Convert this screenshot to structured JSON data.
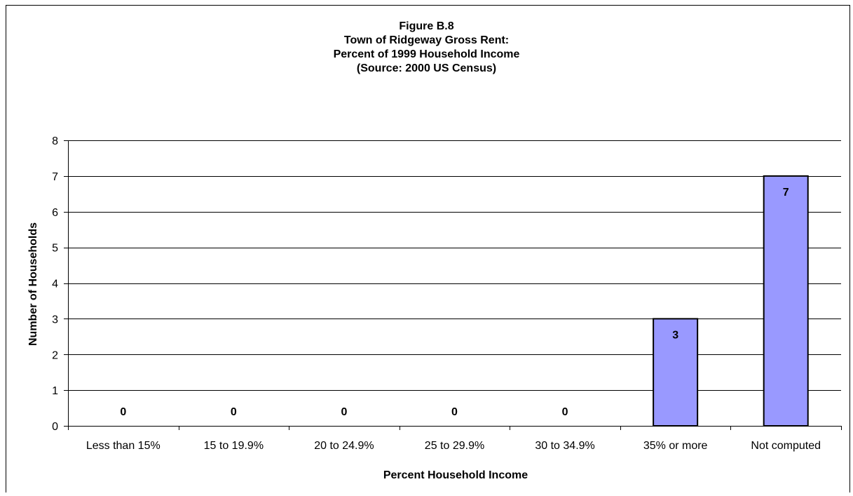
{
  "chart_data": {
    "type": "bar",
    "title_lines": [
      "Figure B.8",
      "Town of Ridgeway Gross Rent:",
      "Percent of 1999 Household Income",
      "(Source: 2000 US Census)"
    ],
    "xlabel": "Percent Household Income",
    "ylabel": "Number of Households",
    "categories": [
      "Less than 15%",
      "15 to 19.9%",
      "20 to 24.9%",
      "25 to 29.9%",
      "30 to 34.9%",
      "35% or more",
      "Not computed"
    ],
    "values": [
      0,
      0,
      0,
      0,
      0,
      3,
      7
    ],
    "data_labels": [
      "0",
      "0",
      "0",
      "0",
      "0",
      "3",
      "7"
    ],
    "ylim": [
      0,
      8
    ],
    "y_ticks": [
      "0",
      "1",
      "2",
      "3",
      "4",
      "5",
      "6",
      "7",
      "8"
    ],
    "grid": true,
    "bar_color": "#9999ff",
    "bar_edge_color": "#000000"
  }
}
